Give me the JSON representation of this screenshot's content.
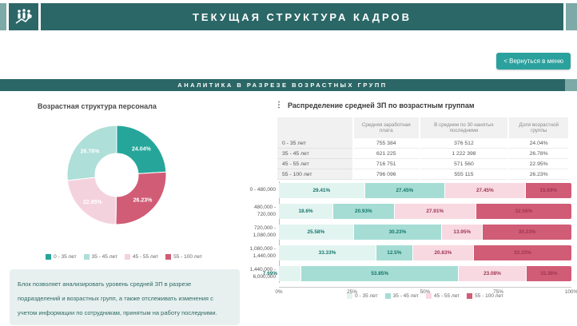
{
  "header": {
    "title": "ТЕКУЩАЯ СТРУКТУРА КАДРОВ"
  },
  "toolbar": {
    "back_button": "< Вернуться в меню"
  },
  "section_band": {
    "label": "АНАЛИТИКА В РАЗРЕЗЕ ВОЗРАСТНЫХ ГРУПП"
  },
  "colors": {
    "header_teal": "#2b6766",
    "edge_teal": "#7da9a7",
    "button_teal": "#2ba19e",
    "donut_palette": [
      "#26a69a",
      "#aedfd8",
      "#f4d2dd",
      "#d15c76"
    ],
    "bar_palette": [
      "#e2f4f0",
      "#a5ddd4",
      "#f8d9e1",
      "#d15c76"
    ]
  },
  "info_box": {
    "text": "Блок позволяет анализировать уровень средней ЗП в разрезе подразделений и возрастных групп, а также отслеживать изменения с учетом информации по сотрудникам, принятым на работу последними."
  },
  "salary_table": {
    "title": "Распределение средней ЗП по возрастным группам",
    "columns": [
      "",
      "Средняя заработная плата",
      "В среднем по 30 нанятых последними",
      "Доля возрастной группы"
    ],
    "rows": [
      [
        "0 - 35 лет",
        "755 384",
        "376 512",
        "24.04%"
      ],
      [
        "35 - 45 лет",
        "621 225",
        "1 222 398",
        "26.78%"
      ],
      [
        "45 - 55 лет",
        "716 751",
        "571 560",
        "22.95%"
      ],
      [
        "55 - 100 лет",
        "796 096",
        "555 115",
        "26.23%"
      ]
    ]
  },
  "donut_legend": [
    {
      "label": "0 - 35 лет",
      "color": "#26a69a"
    },
    {
      "label": "35 - 45 лет",
      "color": "#aedfd8"
    },
    {
      "label": "45 - 55 лет",
      "color": "#f4d2dd"
    },
    {
      "label": "55 - 100 лет",
      "color": "#d15c76"
    }
  ],
  "bar_legend": [
    {
      "label": "0 - 35 лет",
      "color": "#e2f4f0"
    },
    {
      "label": "35 - 45 лет",
      "color": "#a5ddd4"
    },
    {
      "label": "45 - 55 лет",
      "color": "#f8d9e1"
    },
    {
      "label": "55 - 100 лет",
      "color": "#d15c76"
    }
  ],
  "chart_data": [
    {
      "type": "pie",
      "donut": true,
      "title": "Возрастная структура персонала",
      "labels": [
        "0 - 35 лет",
        "35 - 45 лет",
        "45 - 55 лет",
        "55 - 100 лет"
      ],
      "values": [
        24.04,
        26.78,
        22.95,
        26.23
      ],
      "segments_clockwise_from_top": [
        {
          "label": "0 - 35 лет",
          "value": 24.04,
          "display": "24.04%",
          "color": "#26a69a"
        },
        {
          "label": "55 - 100 лет",
          "value": 26.23,
          "display": "26.23%",
          "color": "#d15c76"
        },
        {
          "label": "45 - 55 лет",
          "value": 22.95,
          "display": "22.95%",
          "color": "#f4d2dd"
        },
        {
          "label": "35 - 45 лет",
          "value": 26.78,
          "display": "26.78%",
          "color": "#aedfd8"
        }
      ],
      "legend_position": "bottom"
    },
    {
      "type": "bar",
      "stacked": true,
      "orientation": "horizontal",
      "categories": [
        "0 - 480,000",
        "480,000 - 720,000",
        "720,000 - 1,080,000",
        "1,080,000 - 1,440,000",
        "1,440,000 - 6,000,000"
      ],
      "series": [
        {
          "name": "0 - 35 лет",
          "color": "#e2f4f0",
          "values": [
            29.41,
            18.6,
            25.58,
            33.33,
            7.69
          ]
        },
        {
          "name": "35 - 45 лет",
          "color": "#a5ddd4",
          "values": [
            27.45,
            20.93,
            30.23,
            12.5,
            53.85
          ]
        },
        {
          "name": "45 - 55 лет",
          "color": "#f8d9e1",
          "values": [
            27.45,
            27.91,
            13.95,
            20.83,
            23.08
          ]
        },
        {
          "name": "55 - 100 лет",
          "color": "#d15c76",
          "values": [
            15.69,
            32.56,
            30.23,
            33.33,
            15.38
          ]
        }
      ],
      "xlim": [
        0,
        100
      ],
      "x_ticks": [
        "0%",
        "25%",
        "50%",
        "75%",
        "100%"
      ],
      "legend_position": "bottom",
      "grid": false
    }
  ]
}
